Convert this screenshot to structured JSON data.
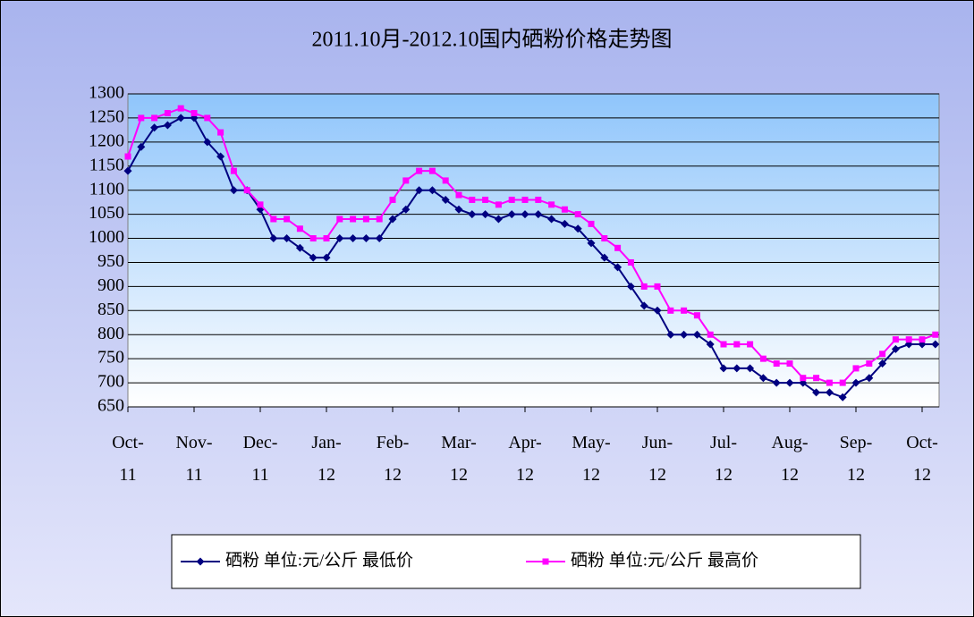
{
  "chart_data": {
    "type": "line",
    "title": "2011.10月-2012.10国内硒粉价格走势图",
    "categories": [
      "Oct-11",
      null,
      null,
      null,
      null,
      "Nov-11",
      null,
      null,
      null,
      null,
      "Dec-11",
      null,
      null,
      null,
      null,
      "Jan-12",
      null,
      null,
      null,
      null,
      "Feb-12",
      null,
      null,
      null,
      null,
      "Mar-12",
      null,
      null,
      null,
      null,
      "Apr-12",
      null,
      null,
      null,
      null,
      "May-12",
      null,
      null,
      null,
      null,
      "Jun-12",
      null,
      null,
      null,
      null,
      "Jul-12",
      null,
      null,
      null,
      null,
      "Aug-12",
      null,
      null,
      null,
      null,
      "Sep-12",
      null,
      null,
      null,
      null,
      "Oct-12",
      null
    ],
    "series": [
      {
        "name": "硒粉 单位:元/公斤 最低价",
        "color": "#000080",
        "marker": "diamond",
        "values": [
          1140,
          1190,
          1230,
          1235,
          1250,
          1250,
          1200,
          1170,
          1100,
          1100,
          1060,
          1000,
          1000,
          980,
          960,
          960,
          1000,
          1000,
          1000,
          1000,
          1040,
          1060,
          1100,
          1100,
          1080,
          1060,
          1050,
          1050,
          1040,
          1050,
          1050,
          1050,
          1040,
          1030,
          1020,
          990,
          960,
          940,
          900,
          860,
          850,
          800,
          800,
          800,
          780,
          730,
          730,
          730,
          710,
          700,
          700,
          700,
          680,
          680,
          670,
          700,
          710,
          740,
          770,
          780,
          780,
          780
        ]
      },
      {
        "name": "硒粉 单位:元/公斤 最高价",
        "color": "#ff00ff",
        "marker": "square",
        "values": [
          1170,
          1250,
          1250,
          1260,
          1270,
          1260,
          1250,
          1220,
          1140,
          1100,
          1070,
          1040,
          1040,
          1020,
          1000,
          1000,
          1040,
          1040,
          1040,
          1040,
          1080,
          1120,
          1140,
          1140,
          1120,
          1090,
          1080,
          1080,
          1070,
          1080,
          1080,
          1080,
          1070,
          1060,
          1050,
          1030,
          1000,
          980,
          950,
          900,
          900,
          850,
          850,
          840,
          800,
          780,
          780,
          780,
          750,
          740,
          740,
          710,
          710,
          700,
          700,
          730,
          740,
          760,
          790,
          790,
          790,
          800
        ]
      }
    ],
    "ylim": [
      650,
      1300
    ],
    "yticks": [
      650,
      700,
      750,
      800,
      850,
      900,
      950,
      1000,
      1050,
      1100,
      1150,
      1200,
      1250,
      1300
    ],
    "grid": true,
    "legend": "bottom"
  }
}
